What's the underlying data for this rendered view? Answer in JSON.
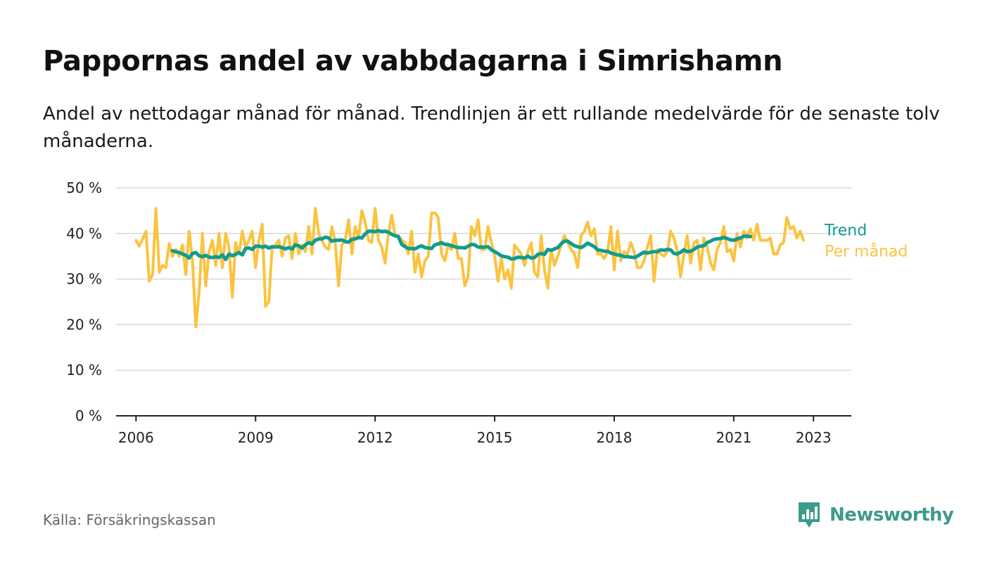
{
  "title": "Pappornas andel av vabbdagarna i Simrishamn",
  "subtitle": "Andel av nettodagar månad för månad. Trendlinjen är ett rullande medelvärde för de senaste tolv månaderna.",
  "source": "Källa: Försäkringskassan",
  "brand": {
    "name": "Newsworthy",
    "icon": "newsworthy-logo-icon",
    "color": "#3d9a8c"
  },
  "chart_data": {
    "type": "line",
    "ylim": [
      0,
      50
    ],
    "y_ticks": [
      0,
      10,
      20,
      30,
      40,
      50
    ],
    "y_tick_labels": [
      "0 %",
      "10 %",
      "20 %",
      "30 %",
      "40 %",
      "50 %"
    ],
    "x_ticks": [
      2006,
      2009,
      2012,
      2015,
      2018,
      2021,
      2023
    ],
    "x_tick_labels": [
      "2006",
      "2009",
      "2012",
      "2015",
      "2018",
      "2021",
      "2023"
    ],
    "grid": true,
    "legend": "end-of-line labels",
    "series": [
      {
        "name": "Per månad",
        "color": "#fbc33f",
        "start": "2006-01",
        "values": [
          38.5,
          37.2,
          38.8,
          40.5,
          29.5,
          31,
          45.5,
          31.5,
          33,
          32.5,
          37.8,
          35,
          36.5,
          35,
          37.5,
          31,
          40.5,
          34,
          19.5,
          27,
          40,
          28.5,
          36,
          38.5,
          33,
          40,
          32.5,
          40,
          37,
          26,
          38,
          35.5,
          40.5,
          37,
          38.5,
          40.5,
          32.5,
          38.5,
          42,
          24,
          25,
          37,
          37.5,
          38.5,
          35,
          39,
          39.5,
          34.5,
          40,
          35.5,
          37.5,
          36,
          41.5,
          35.5,
          45.5,
          40,
          38.5,
          37,
          36.5,
          41.5,
          38,
          28.5,
          37.5,
          38.5,
          43,
          35.5,
          41.5,
          39,
          45,
          42.5,
          38.5,
          38,
          45.5,
          38.5,
          37,
          33.5,
          40,
          44,
          39.5,
          39.5,
          38.5,
          38,
          35.5,
          40.5,
          31.5,
          35.5,
          30.5,
          34,
          35,
          44.5,
          44.5,
          43.5,
          35.5,
          34,
          37.5,
          36.5,
          40,
          34.5,
          34.5,
          28.5,
          30.5,
          41.5,
          39.5,
          43,
          36.5,
          36.5,
          41.5,
          38,
          35,
          29.5,
          34.5,
          30,
          32,
          28,
          37.5,
          36.5,
          35.5,
          33,
          36,
          38,
          31.5,
          30.5,
          39.5,
          32,
          28,
          36.5,
          33,
          35,
          37.5,
          39.5,
          38,
          36.5,
          35.5,
          32.5,
          39.5,
          40.5,
          42.5,
          39.5,
          41,
          35.5,
          35.5,
          34.5,
          36,
          41.5,
          32,
          40.5,
          34,
          36,
          35.5,
          38,
          36,
          32.5,
          32.5,
          34,
          37,
          39.5,
          29.5,
          36.5,
          35.5,
          35,
          36,
          40.5,
          39,
          36,
          30.5,
          35.5,
          39.5,
          33.5,
          38,
          38.5,
          32,
          39,
          37,
          33.5,
          32,
          36.5,
          38,
          41.5,
          36,
          36.5,
          34,
          40,
          37,
          40.5,
          39,
          41,
          38.5,
          42,
          38.5,
          38.5,
          38.5,
          39,
          35.5,
          35.5,
          37.5,
          38,
          43.5,
          41,
          41.5,
          39,
          40.5,
          38.5
        ]
      },
      {
        "name": "Trend",
        "color": "#119c8e",
        "start": "2006-12",
        "values": [
          36.2,
          36,
          35.8,
          35.5,
          35.2,
          34.6,
          35.6,
          35.8,
          35.1,
          34.9,
          35.2,
          34.8,
          34.7,
          34.9,
          34.7,
          35.3,
          34.3,
          35.5,
          35.1,
          35.4,
          35.8,
          35.3,
          36.7,
          36.8,
          36.5,
          37.2,
          37.2,
          37,
          37.2,
          36.8,
          37.1,
          37,
          37.1,
          36.9,
          36.6,
          36.9,
          36.6,
          37.5,
          37.3,
          36.8,
          37.5,
          38,
          37.7,
          38.5,
          38.8,
          38.8,
          39.2,
          39,
          38.3,
          38.5,
          38.5,
          38.6,
          38.2,
          38.1,
          38.7,
          38.8,
          39.1,
          39,
          39.9,
          40.5,
          40.5,
          40.4,
          40.6,
          40.4,
          40.5,
          40.3,
          39.8,
          39.5,
          39.3,
          37.6,
          37.1,
          36.7,
          36.7,
          36.6,
          37,
          37.3,
          36.9,
          36.8,
          36.7,
          37.5,
          37.7,
          38,
          37.6,
          37.6,
          37.3,
          37.1,
          36.9,
          36.9,
          36.8,
          37.2,
          37.6,
          37.5,
          37,
          37,
          37,
          37.1,
          36.4,
          36,
          35.6,
          35.1,
          34.9,
          34.8,
          34.4,
          34.5,
          34.8,
          34.7,
          34.6,
          35,
          34.6,
          34.7,
          35.4,
          35.6,
          35.4,
          36.5,
          36.3,
          36.6,
          36.9,
          37.7,
          38.3,
          38.3,
          37.8,
          37.3,
          37.1,
          36.9,
          37.3,
          37.9,
          37.5,
          37.1,
          36.4,
          36.3,
          36.1,
          36.1,
          35.7,
          35.5,
          35.3,
          35.2,
          34.9,
          34.9,
          34.8,
          34.7,
          35,
          35.5,
          35.9,
          35.7,
          35.9,
          36,
          36,
          36.4,
          36.3,
          36.5,
          36.4,
          35.6,
          35.5,
          35.9,
          36.4,
          36,
          36.1,
          36.5,
          37,
          37.2,
          37.3,
          38,
          38.3,
          38.7,
          38.8,
          38.9,
          39.1,
          38.9,
          38.6,
          38.5,
          38.8,
          39,
          39.4,
          39.4,
          39.3
        ]
      }
    ]
  }
}
